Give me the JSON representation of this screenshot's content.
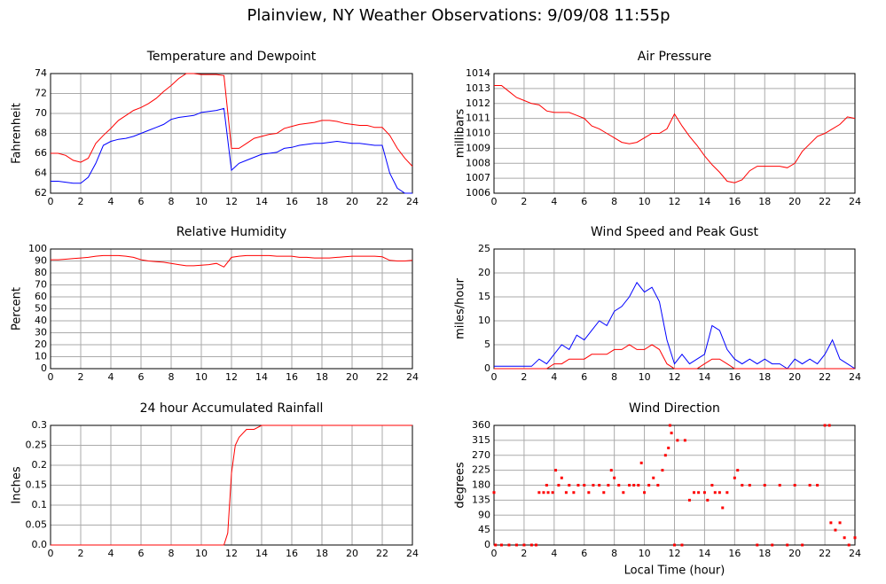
{
  "title": "Plainview, NY Weather Observations: 9/09/08 11:55p",
  "chart_data": [
    {
      "type": "line",
      "title": "Temperature and Dewpoint",
      "ylabel": "Fahrenheit",
      "x": [
        0,
        0.5,
        1,
        1.5,
        2,
        2.5,
        3,
        3.5,
        4,
        4.5,
        5,
        5.5,
        6,
        6.5,
        7,
        7.5,
        8,
        8.5,
        9,
        9.5,
        10,
        10.5,
        11,
        11.5,
        12,
        12.5,
        13,
        13.5,
        14,
        14.5,
        15,
        15.5,
        16,
        16.5,
        17,
        17.5,
        18,
        18.5,
        19,
        19.5,
        20,
        20.5,
        21,
        21.5,
        22,
        22.5,
        23,
        23.5,
        24
      ],
      "series": [
        {
          "color": "#ff0000",
          "values": [
            66,
            66,
            65.8,
            65.3,
            65.1,
            65.5,
            67,
            67.8,
            68.5,
            69.3,
            69.8,
            70.3,
            70.6,
            71,
            71.5,
            72.2,
            72.8,
            73.5,
            74,
            74,
            73.9,
            73.9,
            73.9,
            73.8,
            66.5,
            66.5,
            67,
            67.5,
            67.7,
            67.9,
            68,
            68.5,
            68.7,
            68.9,
            69,
            69.1,
            69.3,
            69.3,
            69.2,
            69,
            68.9,
            68.8,
            68.8,
            68.6,
            68.6,
            67.8,
            66.5,
            65.5,
            64.7
          ]
        },
        {
          "color": "#0000ff",
          "values": [
            63.2,
            63.2,
            63.1,
            63,
            63,
            63.6,
            65,
            66.8,
            67.2,
            67.4,
            67.5,
            67.7,
            68,
            68.3,
            68.6,
            68.9,
            69.4,
            69.6,
            69.7,
            69.8,
            70.1,
            70.2,
            70.3,
            70.5,
            64.3,
            65,
            65.3,
            65.6,
            65.9,
            66,
            66.1,
            66.5,
            66.6,
            66.8,
            66.9,
            67,
            67,
            67.1,
            67.2,
            67.1,
            67,
            67,
            66.9,
            66.8,
            66.8,
            64,
            62.5,
            62,
            62
          ]
        }
      ],
      "xlim": [
        0,
        24
      ],
      "xticks": [
        0,
        2,
        4,
        6,
        8,
        10,
        12,
        14,
        16,
        18,
        20,
        22,
        24
      ],
      "ylim": [
        62,
        74
      ],
      "yticks": [
        62,
        64,
        66,
        68,
        70,
        72,
        74
      ],
      "grid": true
    },
    {
      "type": "line",
      "title": "Air Pressure",
      "ylabel": "millibars",
      "x": [
        0,
        0.5,
        1,
        1.5,
        2,
        2.5,
        3,
        3.5,
        4,
        4.5,
        5,
        5.5,
        6,
        6.5,
        7,
        7.5,
        8,
        8.5,
        9,
        9.5,
        10,
        10.5,
        11,
        11.5,
        12,
        12.5,
        13,
        13.5,
        14,
        14.5,
        15,
        15.5,
        16,
        16.5,
        17,
        17.5,
        18,
        18.5,
        19,
        19.5,
        20,
        20.5,
        21,
        21.5,
        22,
        22.5,
        23,
        23.5,
        24
      ],
      "series": [
        {
          "color": "#ff0000",
          "values": [
            1013.2,
            1013.2,
            1012.8,
            1012.4,
            1012.2,
            1012,
            1011.9,
            1011.5,
            1011.4,
            1011.4,
            1011.4,
            1011.2,
            1011,
            1010.5,
            1010.3,
            1010,
            1009.7,
            1009.4,
            1009.3,
            1009.4,
            1009.7,
            1010,
            1010,
            1010.3,
            1011.3,
            1010.5,
            1009.8,
            1009.2,
            1008.5,
            1007.9,
            1007.4,
            1006.8,
            1006.7,
            1006.9,
            1007.5,
            1007.8,
            1007.8,
            1007.8,
            1007.8,
            1007.7,
            1008,
            1008.8,
            1009.3,
            1009.8,
            1010,
            1010.3,
            1010.6,
            1011.1,
            1011
          ]
        }
      ],
      "xlim": [
        0,
        24
      ],
      "xticks": [
        0,
        2,
        4,
        6,
        8,
        10,
        12,
        14,
        16,
        18,
        20,
        22,
        24
      ],
      "ylim": [
        1006,
        1014
      ],
      "yticks": [
        1006,
        1007,
        1008,
        1009,
        1010,
        1011,
        1012,
        1013,
        1014
      ],
      "grid": true
    },
    {
      "type": "line",
      "title": "Relative Humidity",
      "ylabel": "Percent",
      "x": [
        0,
        0.5,
        1,
        1.5,
        2,
        2.5,
        3,
        3.5,
        4,
        4.5,
        5,
        5.5,
        6,
        6.5,
        7,
        7.5,
        8,
        8.5,
        9,
        9.5,
        10,
        10.5,
        11,
        11.5,
        12,
        12.5,
        13,
        13.5,
        14,
        14.5,
        15,
        15.5,
        16,
        16.5,
        17,
        17.5,
        18,
        18.5,
        19,
        19.5,
        20,
        20.5,
        21,
        21.5,
        22,
        22.5,
        23,
        23.5,
        24
      ],
      "series": [
        {
          "color": "#ff0000",
          "values": [
            91,
            91,
            91.5,
            92,
            92.5,
            93,
            94,
            94.5,
            94.5,
            94.5,
            94,
            93,
            91,
            90,
            89.5,
            89,
            88,
            87,
            86,
            86,
            86.5,
            87,
            88,
            85,
            93,
            94,
            94.5,
            94.5,
            94.5,
            94.5,
            94,
            94,
            94,
            93,
            93,
            92.5,
            92.5,
            92.5,
            93,
            93.5,
            94,
            94,
            94,
            94,
            93.5,
            90.5,
            90,
            90,
            90.5
          ]
        }
      ],
      "xlim": [
        0,
        24
      ],
      "xticks": [
        0,
        2,
        4,
        6,
        8,
        10,
        12,
        14,
        16,
        18,
        20,
        22,
        24
      ],
      "ylim": [
        0,
        100
      ],
      "yticks": [
        0,
        10,
        20,
        30,
        40,
        50,
        60,
        70,
        80,
        90,
        100
      ],
      "grid": true
    },
    {
      "type": "line",
      "title": "Wind Speed and Peak Gust",
      "ylabel": "miles/hour",
      "x": [
        0,
        0.5,
        1,
        1.5,
        2,
        2.5,
        3,
        3.5,
        4,
        4.5,
        5,
        5.5,
        6,
        6.5,
        7,
        7.5,
        8,
        8.5,
        9,
        9.5,
        10,
        10.5,
        11,
        11.5,
        12,
        12.5,
        13,
        13.5,
        14,
        14.5,
        15,
        15.5,
        16,
        16.5,
        17,
        17.5,
        18,
        18.5,
        19,
        19.5,
        20,
        20.5,
        21,
        21.5,
        22,
        22.5,
        23,
        23.5,
        24
      ],
      "series": [
        {
          "color": "#0000ff",
          "values": [
            0.5,
            0.5,
            0.5,
            0.5,
            0.5,
            0.5,
            2,
            1,
            3,
            5,
            4,
            7,
            6,
            8,
            10,
            9,
            12,
            13,
            15,
            18,
            16,
            17,
            14,
            6,
            1,
            3,
            1,
            2,
            3,
            9,
            8,
            4,
            2,
            1,
            2,
            1,
            2,
            1,
            1,
            0,
            2,
            1,
            2,
            1,
            3,
            6,
            2,
            1,
            0
          ]
        },
        {
          "color": "#ff0000",
          "values": [
            0,
            0,
            0,
            0,
            0,
            0,
            0,
            0,
            1,
            1,
            2,
            2,
            2,
            3,
            3,
            3,
            4,
            4,
            5,
            4,
            4,
            5,
            4,
            1,
            0,
            0,
            0,
            0,
            1,
            2,
            2,
            1,
            0,
            0,
            0,
            0,
            0,
            0,
            0,
            0,
            0,
            0,
            0,
            0,
            0,
            0,
            0,
            0,
            0
          ]
        }
      ],
      "xlim": [
        0,
        24
      ],
      "xticks": [
        0,
        2,
        4,
        6,
        8,
        10,
        12,
        14,
        16,
        18,
        20,
        22,
        24
      ],
      "ylim": [
        0,
        25
      ],
      "yticks": [
        0,
        5,
        10,
        15,
        20,
        25
      ],
      "grid": true
    },
    {
      "type": "line",
      "title": "24 hour Accumulated Rainfall",
      "ylabel": "Inches",
      "x": [
        0,
        2,
        4,
        6,
        8,
        10,
        11.5,
        11.75,
        12,
        12.25,
        12.5,
        13,
        13.5,
        14,
        16,
        18,
        20,
        22,
        24
      ],
      "series": [
        {
          "color": "#ff0000",
          "values": [
            0,
            0,
            0,
            0,
            0,
            0,
            0,
            0.03,
            0.18,
            0.25,
            0.27,
            0.29,
            0.29,
            0.3,
            0.3,
            0.3,
            0.3,
            0.3,
            0.3
          ]
        }
      ],
      "xlim": [
        0,
        24
      ],
      "xticks": [
        0,
        2,
        4,
        6,
        8,
        10,
        12,
        14,
        16,
        18,
        20,
        22,
        24
      ],
      "ylim": [
        0,
        0.3
      ],
      "yticks": [
        {
          "value": 0,
          "label": "0.0"
        },
        0.05,
        0.1,
        0.15,
        0.2,
        0.25,
        0.3
      ],
      "grid": true
    },
    {
      "type": "scatter",
      "title": "Wind Direction",
      "ylabel": "degrees",
      "xlabel": "Local Time (hour)",
      "color": "#ff0000",
      "x": [
        0,
        0.1,
        0.5,
        1,
        1.5,
        2,
        2.5,
        2.8,
        3,
        3.3,
        3.5,
        3.6,
        3.9,
        4.1,
        4.3,
        4.5,
        4.8,
        5,
        5.3,
        5.6,
        6,
        6.3,
        6.6,
        7,
        7.3,
        7.6,
        7.8,
        8,
        8.3,
        8.6,
        9,
        9.3,
        9.6,
        9.8,
        10,
        10.3,
        10.6,
        10.9,
        11.2,
        11.4,
        11.6,
        11.7,
        11.8,
        12,
        12.2,
        12.5,
        12.7,
        13,
        13.3,
        13.6,
        14,
        14.2,
        14.5,
        14.7,
        15,
        15.2,
        15.5,
        16,
        16.2,
        16.5,
        17,
        17.5,
        18,
        18.5,
        19,
        19.5,
        20,
        20.5,
        21,
        21.5,
        22,
        22.3,
        22.4,
        22.7,
        23,
        23.3,
        23.6,
        24
      ],
      "values": [
        158,
        0,
        0,
        0,
        0,
        0,
        0,
        0,
        158,
        158,
        180,
        158,
        158,
        225,
        180,
        202,
        158,
        180,
        158,
        180,
        180,
        158,
        180,
        180,
        158,
        180,
        225,
        202,
        180,
        158,
        180,
        180,
        180,
        247,
        158,
        180,
        202,
        180,
        225,
        270,
        292,
        360,
        337,
        0,
        315,
        0,
        315,
        135,
        158,
        158,
        158,
        135,
        180,
        158,
        158,
        112,
        158,
        202,
        225,
        180,
        180,
        0,
        180,
        0,
        180,
        0,
        180,
        0,
        180,
        180,
        360,
        360,
        67,
        45,
        67,
        22,
        0,
        22
      ],
      "xlim": [
        0,
        24
      ],
      "xticks": [
        0,
        2,
        4,
        6,
        8,
        10,
        12,
        14,
        16,
        18,
        20,
        22,
        24
      ],
      "ylim": [
        0,
        360
      ],
      "yticks": [
        0,
        45,
        90,
        135,
        180,
        225,
        270,
        315,
        360
      ],
      "grid": true
    }
  ]
}
